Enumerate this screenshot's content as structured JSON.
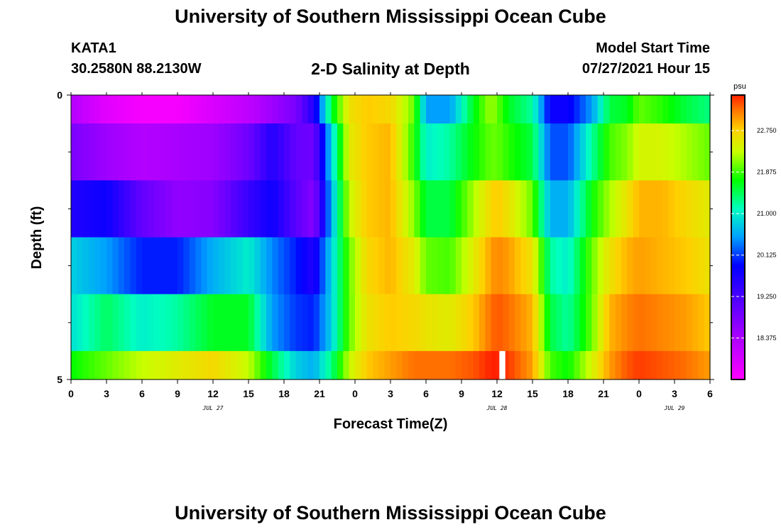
{
  "header": {
    "title": "University of Southern Mississippi Ocean Cube",
    "station": "KATA1",
    "coordinates": "30.2580N  88.2130W",
    "chart_title": "2-D Salinity at Depth",
    "model_start_label": "Model Start Time",
    "model_start_value": "07/27/2021 Hour 15"
  },
  "footer": {
    "title": "University of Southern Mississippi Ocean Cube"
  },
  "colors": {
    "background": "#ffffff",
    "missing_value": "#ffffff"
  },
  "chart_data": {
    "type": "heatmap",
    "title": "2-D Salinity at Depth",
    "xlabel": "Forecast Time(Z)",
    "ylabel": "Depth (ft)",
    "x_range": [
      0,
      54
    ],
    "y_range": [
      0,
      5
    ],
    "x_ticks": [
      {
        "hour": 0,
        "label": "0"
      },
      {
        "hour": 3,
        "label": "3"
      },
      {
        "hour": 6,
        "label": "6"
      },
      {
        "hour": 9,
        "label": "9"
      },
      {
        "hour": 12,
        "label": "12"
      },
      {
        "hour": 15,
        "label": "15"
      },
      {
        "hour": 18,
        "label": "18"
      },
      {
        "hour": 21,
        "label": "21"
      },
      {
        "hour": 24,
        "label": "0"
      },
      {
        "hour": 27,
        "label": "3"
      },
      {
        "hour": 30,
        "label": "6"
      },
      {
        "hour": 33,
        "label": "9"
      },
      {
        "hour": 36,
        "label": "12"
      },
      {
        "hour": 39,
        "label": "15"
      },
      {
        "hour": 42,
        "label": "18"
      },
      {
        "hour": 45,
        "label": "21"
      },
      {
        "hour": 48,
        "label": "0"
      },
      {
        "hour": 51,
        "label": "3"
      },
      {
        "hour": 54,
        "label": "6"
      }
    ],
    "day_labels": [
      {
        "hour": 12,
        "label": "JUL 27"
      },
      {
        "hour": 36,
        "label": "JUL 28"
      },
      {
        "hour": 51,
        "label": "JUL 29"
      }
    ],
    "y_ticks": [
      {
        "depth": 0,
        "label": "0"
      },
      {
        "depth": 5,
        "label": "5"
      }
    ],
    "y_minor_ticks": [
      1,
      2,
      3,
      4
    ],
    "depth_layers": [
      0.0,
      0.5,
      1.5,
      2.5,
      3.5,
      4.5,
      5.0
    ],
    "colorbar": {
      "unit": "psu",
      "min": 17.5,
      "max": 23.5,
      "ticks": [
        18.375,
        19.25,
        20.125,
        21.0,
        21.875,
        22.75
      ],
      "tick_labels": [
        "18.375",
        "19.250",
        "20.125",
        "21.000",
        "21.875",
        "22.750"
      ]
    },
    "salinity_key_hours": [
      0,
      3,
      6,
      9,
      12,
      15,
      17,
      19,
      20.5,
      22,
      23.5,
      25,
      27,
      29,
      30,
      32,
      34,
      35.5,
      36,
      37,
      39,
      40.5,
      42,
      44,
      45.5,
      47,
      48,
      50,
      52,
      54
    ],
    "salinity_layers": [
      [
        18.3,
        17.8,
        17.6,
        17.6,
        17.9,
        18.2,
        18.5,
        18.8,
        19.6,
        21.5,
        22.6,
        22.8,
        22.7,
        22.0,
        20.5,
        20.5,
        21.6,
        22.2,
        22.0,
        21.6,
        21.2,
        19.8,
        19.8,
        20.5,
        21.5,
        21.6,
        22.0,
        21.8,
        21.5,
        21.3
      ],
      [
        18.8,
        18.5,
        18.3,
        18.4,
        18.5,
        18.9,
        19.6,
        19.0,
        18.9,
        20.8,
        22.5,
        22.8,
        22.9,
        21.8,
        21.0,
        21.2,
        21.7,
        22.0,
        22.0,
        21.8,
        21.5,
        20.2,
        20.2,
        21.2,
        21.9,
        22.1,
        22.4,
        22.4,
        22.2,
        22.0
      ],
      [
        19.6,
        19.8,
        19.0,
        18.6,
        18.7,
        19.4,
        19.8,
        19.1,
        18.7,
        20.6,
        22.3,
        22.8,
        22.9,
        22.1,
        21.5,
        21.5,
        22.2,
        22.7,
        22.8,
        22.6,
        22.0,
        20.6,
        20.6,
        21.7,
        22.2,
        22.6,
        22.9,
        22.9,
        22.7,
        22.5
      ],
      [
        20.8,
        20.5,
        20.0,
        20.0,
        20.6,
        21.0,
        20.4,
        20.0,
        19.6,
        20.8,
        22.0,
        22.7,
        22.9,
        22.5,
        22.0,
        21.9,
        22.5,
        23.0,
        23.1,
        23.0,
        22.6,
        21.2,
        21.0,
        22.0,
        22.6,
        22.9,
        23.0,
        22.9,
        22.8,
        22.6
      ],
      [
        20.9,
        21.4,
        21.0,
        21.2,
        21.6,
        21.6,
        20.5,
        20.1,
        20.0,
        20.8,
        22.0,
        22.6,
        22.8,
        22.7,
        22.6,
        22.5,
        22.8,
        23.2,
        23.3,
        23.2,
        22.9,
        21.5,
        21.2,
        22.0,
        22.9,
        23.1,
        23.2,
        23.1,
        23.0,
        22.8
      ],
      [
        21.7,
        22.0,
        22.3,
        22.5,
        22.7,
        22.3,
        21.5,
        20.8,
        20.6,
        21.3,
        22.3,
        22.8,
        23.0,
        23.2,
        23.2,
        23.2,
        23.3,
        23.5,
        23.5,
        23.4,
        23.0,
        21.9,
        21.7,
        22.4,
        23.0,
        23.3,
        23.4,
        23.3,
        23.2,
        23.0
      ]
    ],
    "missing_data": [
      {
        "hour_start": 36.2,
        "hour_end": 36.7,
        "depth_start": 4.5,
        "depth_end": 5.0
      }
    ]
  }
}
